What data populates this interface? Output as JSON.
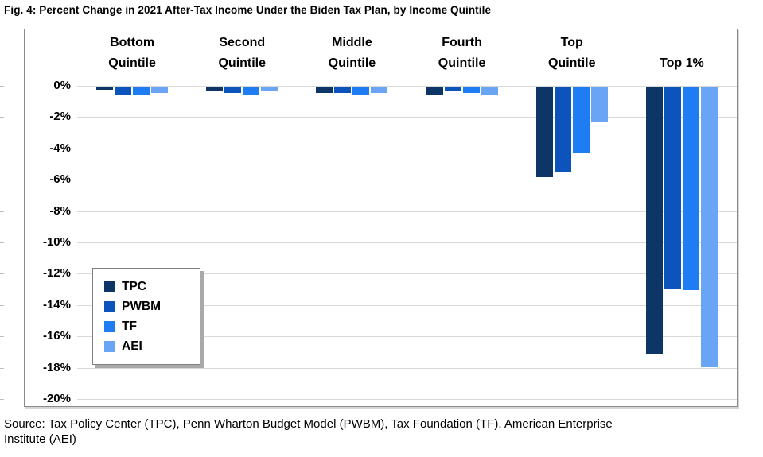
{
  "title": "Fig. 4: Percent Change in 2021 After-Tax Income Under the Biden Tax Plan, by Income Quintile",
  "source": {
    "line1": "Source: Tax Policy Center (TPC), Penn Wharton Budget Model (PWBM), Tax Foundation (TF), American Enterprise",
    "line2": "Institute (AEI)"
  },
  "colors": {
    "gridline": "#d9d9d9",
    "frame_border": "#8a8a8a",
    "legend_border": "#7f7f7f",
    "text": "#000000"
  },
  "chart_data": {
    "type": "bar",
    "title": "Fig. 4: Percent Change in 2021 After-Tax Income Under the Biden Tax Plan, by Income Quintile",
    "categories": [
      "Bottom Quintile",
      "Second Quintile",
      "Middle Quintile",
      "Fourth Quintile",
      "Top Quintile",
      "Top 1%"
    ],
    "categories_display": [
      [
        "Bottom",
        "Quintile"
      ],
      [
        "Second",
        "Quintile"
      ],
      [
        "Middle",
        "Quintile"
      ],
      [
        "Fourth",
        "Quintile"
      ],
      [
        "Top",
        "Quintile"
      ],
      [
        "Top 1%"
      ]
    ],
    "series": [
      {
        "name": "TPC",
        "color": "#0d3666",
        "values": [
          -0.2,
          -0.3,
          -0.4,
          -0.5,
          -5.8,
          -17.1
        ]
      },
      {
        "name": "PWBM",
        "color": "#0c53bb",
        "values": [
          -0.5,
          -0.4,
          -0.4,
          -0.3,
          -5.5,
          -12.9
        ]
      },
      {
        "name": "TF",
        "color": "#1e7df2",
        "values": [
          -0.5,
          -0.5,
          -0.5,
          -0.4,
          -4.2,
          -13.0
        ]
      },
      {
        "name": "AEI",
        "color": "#6aa4f4",
        "values": [
          -0.4,
          -0.3,
          -0.4,
          -0.5,
          -2.3,
          -17.9
        ]
      }
    ],
    "xlabel": "",
    "ylabel": "",
    "ylim": [
      -20,
      0
    ],
    "ytick_step": 2,
    "ytick_labels": [
      "0%",
      "-2%",
      "-4%",
      "-6%",
      "-8%",
      "-10%",
      "-12%",
      "-14%",
      "-16%",
      "-18%",
      "-20%"
    ],
    "grid": true,
    "legend_entries": [
      "TPC",
      "PWBM",
      "TF",
      "AEI"
    ],
    "legend_position": "inside-left"
  }
}
